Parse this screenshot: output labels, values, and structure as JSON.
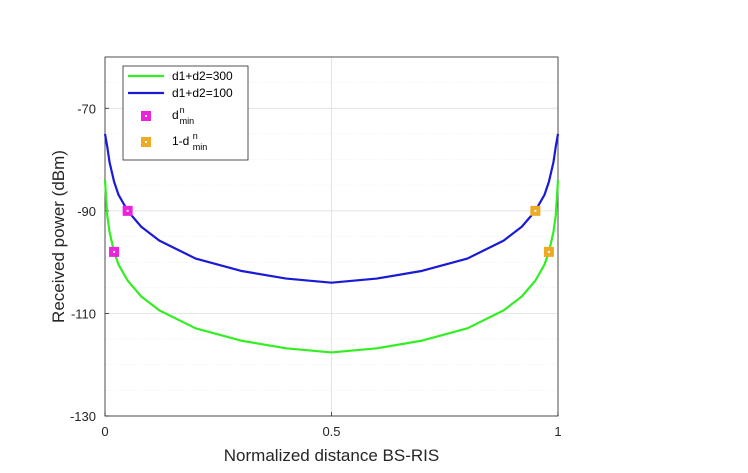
{
  "chart_data": {
    "type": "line",
    "title": "",
    "xlabel": "Normalized distance BS-RIS",
    "ylabel": "Received power (dBm)",
    "xlim": [
      0,
      1
    ],
    "ylim": [
      -130,
      -60
    ],
    "x_ticks": [
      0,
      0.5,
      1
    ],
    "x_tick_labels": [
      "0",
      "0.5",
      "1"
    ],
    "y_ticks": [
      -130,
      -110,
      -90,
      -70
    ],
    "y_tick_labels": [
      "-130",
      "-110",
      "-90",
      "-70"
    ],
    "y_minor_grid_step": 5,
    "grid": true,
    "legend_position": "top-left",
    "series": [
      {
        "name": "d1+d2=300",
        "color": "#33ee22",
        "x": [
          0,
          0.005,
          0.01,
          0.02,
          0.03,
          0.05,
          0.08,
          0.12,
          0.2,
          0.3,
          0.4,
          0.5,
          0.6,
          0.7,
          0.8,
          0.88,
          0.92,
          0.95,
          0.97,
          0.98,
          0.99,
          0.995,
          1
        ],
        "y": [
          -84,
          -90.9,
          -94.1,
          -98,
          -100.5,
          -103.6,
          -106.7,
          -109.4,
          -112.9,
          -115.3,
          -116.8,
          -117.6,
          -116.8,
          -115.3,
          -112.9,
          -109.4,
          -106.7,
          -103.6,
          -100.5,
          -98,
          -94.1,
          -90.9,
          -84
        ]
      },
      {
        "name": "d1+d2=100",
        "color": "#1a1ad6",
        "x": [
          0,
          0.005,
          0.01,
          0.02,
          0.03,
          0.05,
          0.08,
          0.12,
          0.2,
          0.3,
          0.4,
          0.5,
          0.6,
          0.7,
          0.8,
          0.88,
          0.92,
          0.95,
          0.97,
          0.98,
          0.99,
          0.995,
          1
        ],
        "y": [
          -75,
          -77.5,
          -80.5,
          -84.3,
          -86.9,
          -90,
          -93.1,
          -95.8,
          -99.3,
          -101.7,
          -103.2,
          -104,
          -103.2,
          -101.7,
          -99.3,
          -95.8,
          -93.1,
          -90,
          -86.9,
          -84.3,
          -80.5,
          -77.5,
          -75
        ]
      }
    ],
    "markers": [
      {
        "name": "d_min^n",
        "label_base": "d",
        "label_sup": "n",
        "label_sub": "min",
        "color": "#ee22dd",
        "points": [
          {
            "x": 0.02,
            "y": -98
          },
          {
            "x": 0.05,
            "y": -90
          }
        ]
      },
      {
        "name": "1-d_min^n",
        "label_base": "1-d",
        "label_sup": "n",
        "label_sub": "min",
        "color": "#eeaa22",
        "points": [
          {
            "x": 0.98,
            "y": -98
          },
          {
            "x": 0.95,
            "y": -90
          }
        ]
      }
    ]
  }
}
